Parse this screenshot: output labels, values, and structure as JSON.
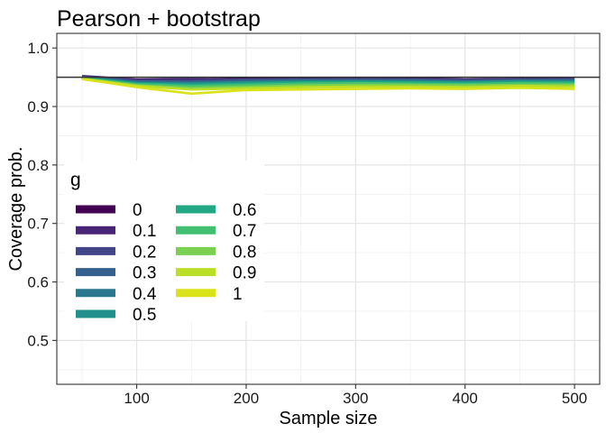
{
  "chart_data": {
    "type": "line",
    "title": "Pearson + bootstrap",
    "xlabel": "Sample size",
    "ylabel": "Coverage prob.",
    "xlim": [
      27,
      523
    ],
    "ylim": [
      0.425,
      1.025
    ],
    "x_ticks": [
      100,
      200,
      300,
      400,
      500
    ],
    "y_ticks": [
      0.5,
      0.6,
      0.7,
      0.8,
      0.9,
      1.0
    ],
    "x_tick_labels": [
      "100",
      "200",
      "300",
      "400",
      "500"
    ],
    "y_tick_labels": [
      "0.5",
      "0.6",
      "0.7",
      "0.8",
      "0.9",
      "1.0"
    ],
    "grid": true,
    "reference_line": {
      "y": 0.95,
      "color": "#333333"
    },
    "legend": {
      "title": "g",
      "placement": "left",
      "columns": 2
    },
    "x": [
      50,
      100,
      150,
      200,
      250,
      300,
      350,
      400,
      450,
      500
    ],
    "series": [
      {
        "name": "0",
        "color": "#440154",
        "values": [
          0.951,
          0.945,
          0.946,
          0.948,
          0.949,
          0.948,
          0.949,
          0.946,
          0.947,
          0.947
        ]
      },
      {
        "name": "0.1",
        "color": "#482576",
        "values": [
          0.952,
          0.946,
          0.947,
          0.946,
          0.948,
          0.947,
          0.948,
          0.946,
          0.947,
          0.948
        ]
      },
      {
        "name": "0.2",
        "color": "#414487",
        "values": [
          0.951,
          0.944,
          0.944,
          0.946,
          0.946,
          0.947,
          0.946,
          0.945,
          0.946,
          0.947
        ]
      },
      {
        "name": "0.3",
        "color": "#35608D",
        "values": [
          0.95,
          0.943,
          0.942,
          0.944,
          0.945,
          0.945,
          0.945,
          0.944,
          0.945,
          0.945
        ]
      },
      {
        "name": "0.4",
        "color": "#2A788E",
        "values": [
          0.95,
          0.941,
          0.94,
          0.942,
          0.944,
          0.944,
          0.944,
          0.942,
          0.944,
          0.944
        ]
      },
      {
        "name": "0.5",
        "color": "#21908C",
        "values": [
          0.949,
          0.94,
          0.939,
          0.941,
          0.942,
          0.943,
          0.942,
          0.941,
          0.943,
          0.942
        ]
      },
      {
        "name": "0.6",
        "color": "#22A884",
        "values": [
          0.949,
          0.939,
          0.937,
          0.939,
          0.941,
          0.941,
          0.941,
          0.94,
          0.941,
          0.941
        ]
      },
      {
        "name": "0.7",
        "color": "#43BF71",
        "values": [
          0.948,
          0.938,
          0.935,
          0.937,
          0.939,
          0.94,
          0.939,
          0.938,
          0.94,
          0.939
        ]
      },
      {
        "name": "0.8",
        "color": "#7AD151",
        "values": [
          0.948,
          0.936,
          0.932,
          0.934,
          0.936,
          0.937,
          0.937,
          0.936,
          0.937,
          0.937
        ]
      },
      {
        "name": "0.9",
        "color": "#BBDF27",
        "values": [
          0.947,
          0.935,
          0.929,
          0.931,
          0.933,
          0.934,
          0.934,
          0.933,
          0.935,
          0.934
        ]
      },
      {
        "name": "1",
        "color": "#D9E21A",
        "values": [
          0.947,
          0.933,
          0.922,
          0.928,
          0.929,
          0.93,
          0.931,
          0.93,
          0.932,
          0.93
        ]
      }
    ]
  }
}
